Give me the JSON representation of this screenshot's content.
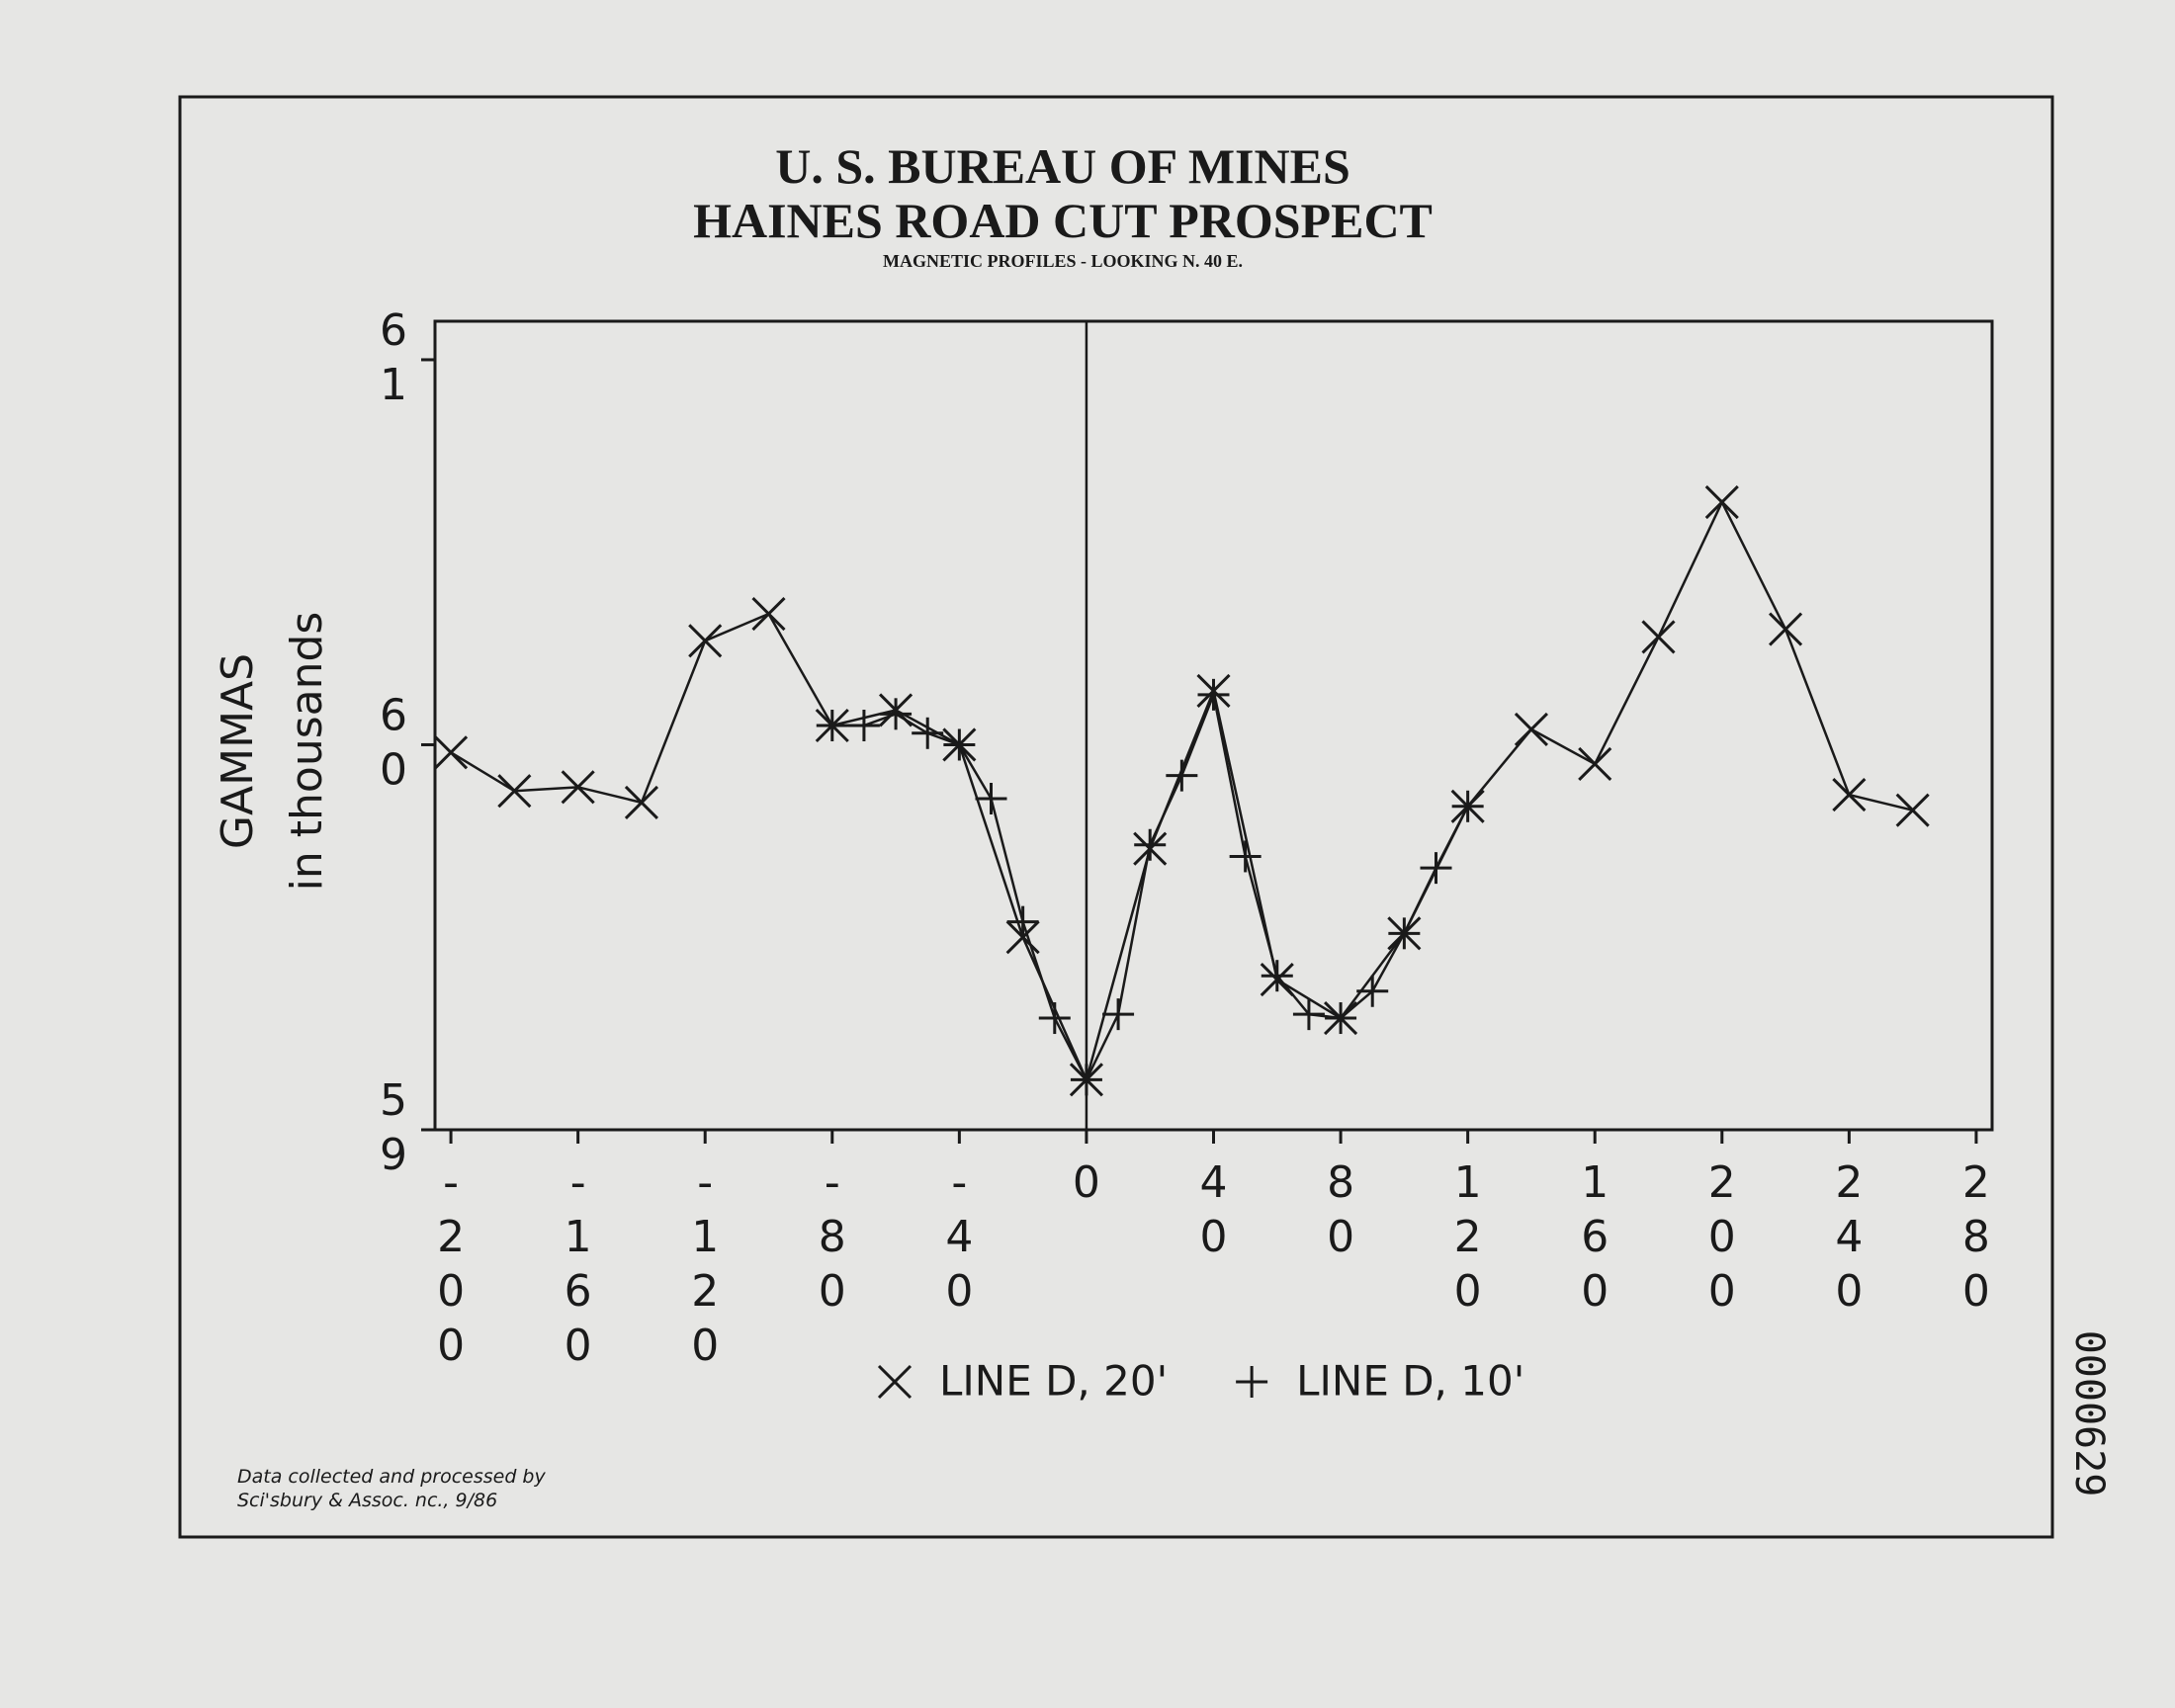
{
  "chart_data": {
    "type": "line",
    "title": "U. S. BUREAU OF MINES",
    "subtitle": "HAINES ROAD CUT PROSPECT",
    "caption": "MAGNETIC PROFILES - LOOKING N. 40 E.",
    "ylabel": [
      "GAMMAS",
      "in thousands"
    ],
    "annotations": [
      "Data collected and processed by",
      "Sci'sbury & Assoc. nc., 9/86"
    ],
    "stamp": "0000629",
    "xlim": [
      -205,
      285
    ],
    "xticks": [
      -200,
      -160,
      -120,
      -80,
      -40,
      0,
      40,
      80,
      120,
      160,
      200,
      240,
      280
    ],
    "ylim": [
      59,
      61.1
    ],
    "yticks": [
      59,
      60,
      61
    ],
    "series": [
      {
        "name": "LINE D, 20'",
        "color": "#1a1a1a",
        "marker": "x",
        "x": [
          -200,
          -180,
          -160,
          -140,
          -120,
          -100,
          -80,
          -60,
          -40,
          -20,
          0,
          20,
          40,
          60,
          80,
          100,
          120,
          140,
          160,
          180,
          200,
          220,
          240,
          260
        ],
        "values": [
          59.98,
          59.88,
          59.89,
          59.85,
          60.27,
          60.34,
          60.05,
          60.09,
          60.0,
          59.5,
          59.13,
          59.73,
          60.14,
          59.39,
          59.29,
          59.51,
          59.84,
          60.04,
          59.95,
          60.28,
          60.63,
          60.3,
          59.87,
          59.83
        ]
      },
      {
        "name": "LINE D, 10'",
        "color": "#1a1a1a",
        "marker": "plus",
        "x": [
          -80,
          -70,
          -60,
          -50,
          -40,
          -30,
          -20,
          -10,
          0,
          10,
          20,
          30,
          40,
          50,
          60,
          70,
          80,
          90,
          100,
          110,
          120
        ],
        "values": [
          60.05,
          60.05,
          60.08,
          60.03,
          60.0,
          59.86,
          59.54,
          59.29,
          59.13,
          59.3,
          59.74,
          59.92,
          60.13,
          59.71,
          59.4,
          59.3,
          59.29,
          59.36,
          59.51,
          59.68,
          59.84
        ]
      }
    ]
  }
}
